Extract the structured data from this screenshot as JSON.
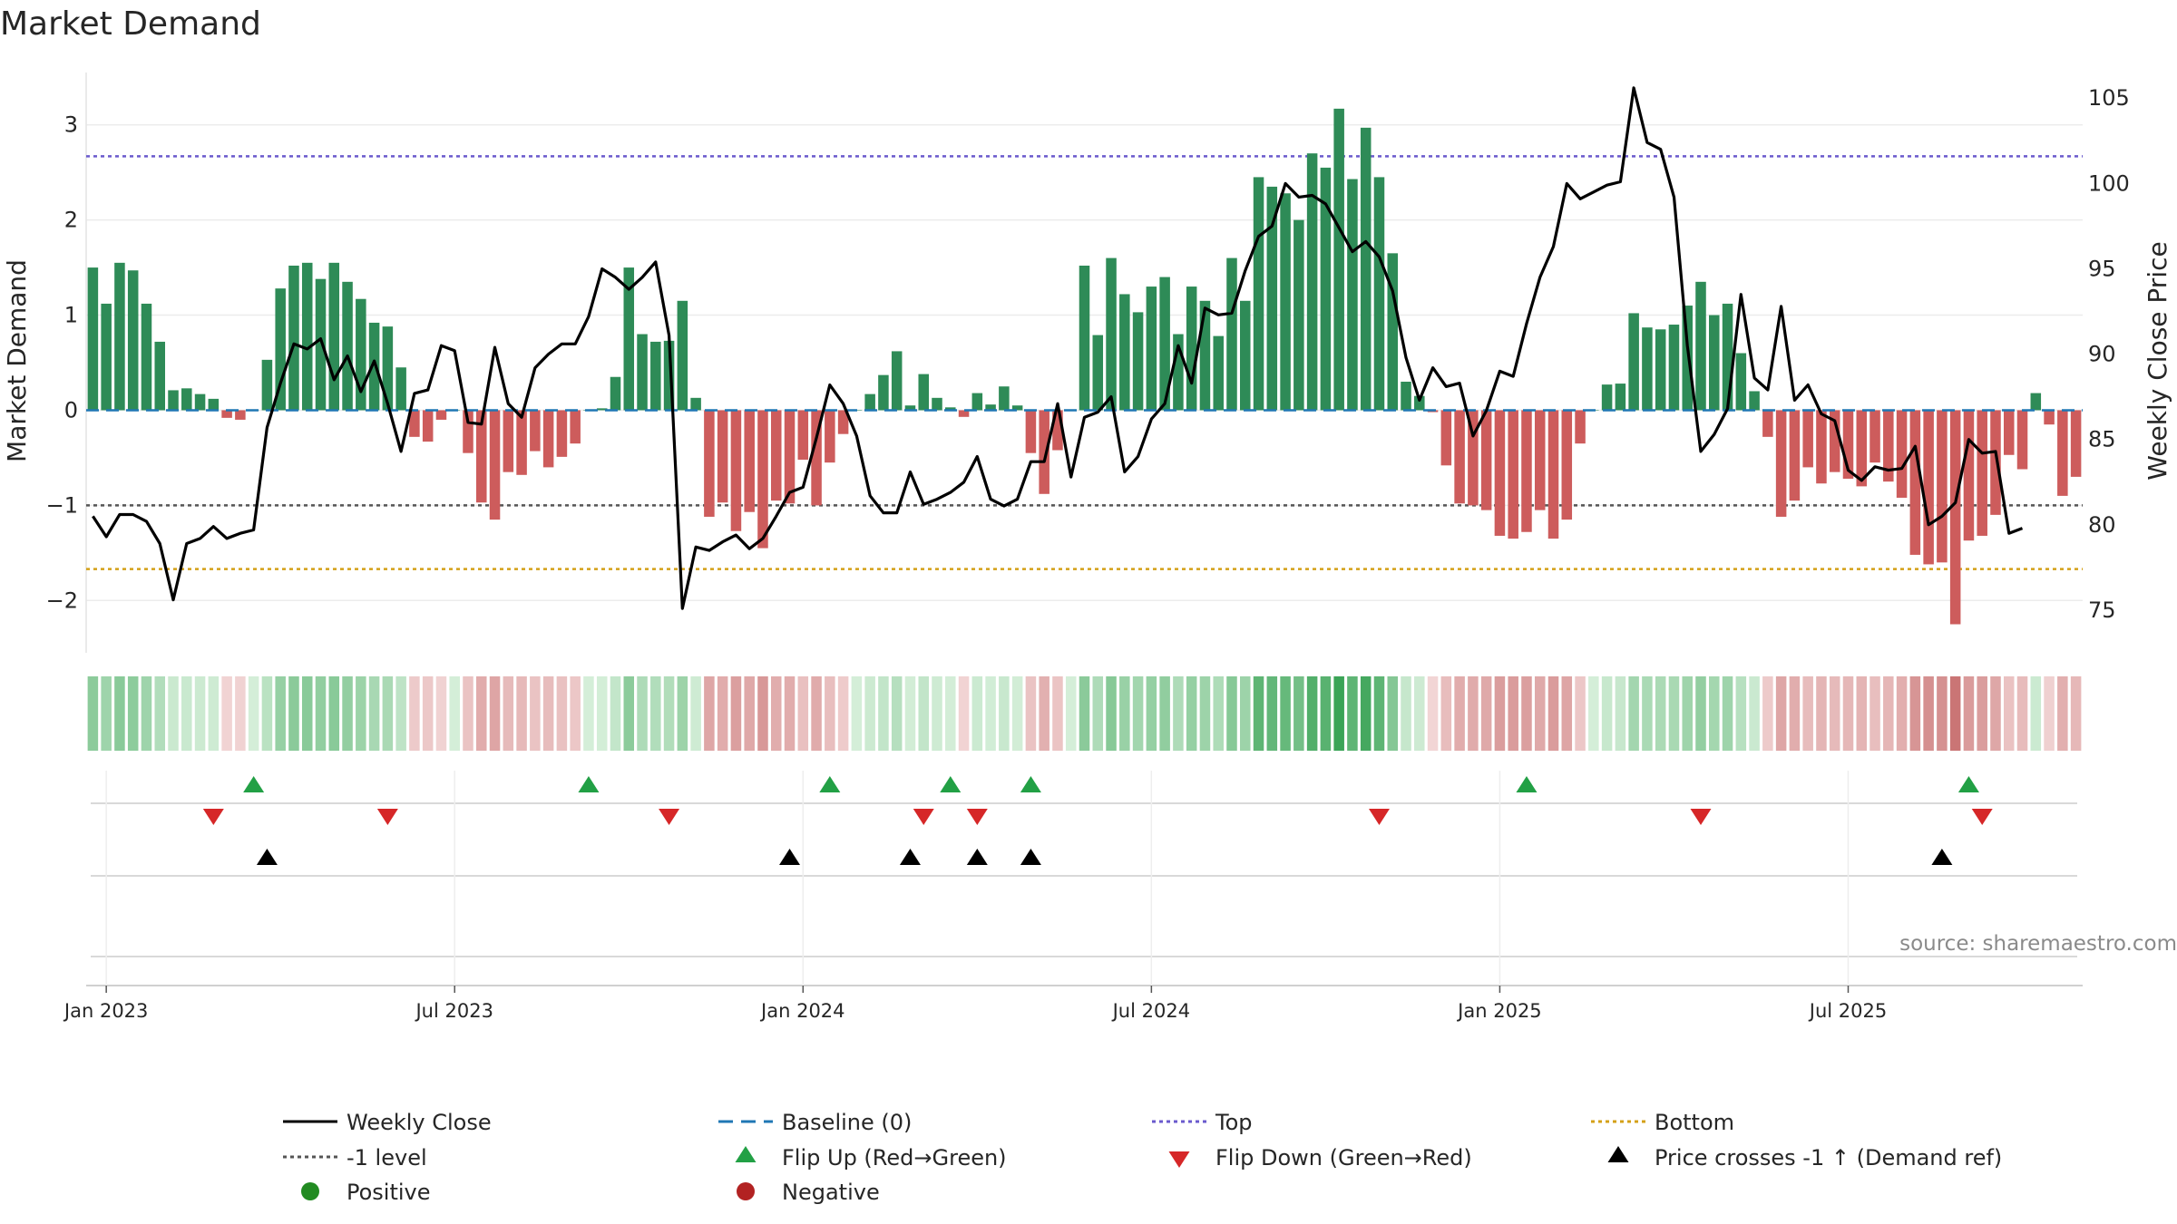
{
  "chart_data": {
    "type": "bar",
    "title": "Market Demand",
    "ylabel_left": "Market Demand",
    "ylabel_right": "Weekly Close Price",
    "xlabel": "",
    "ylim_left": [
      -2.55,
      3.55
    ],
    "ylim_right": [
      72.5,
      106.5
    ],
    "yticks_left": [
      3,
      2,
      1,
      0,
      -1,
      -2
    ],
    "yticks_left_labels": [
      "3",
      "2",
      "1",
      "0",
      "−1",
      "−2"
    ],
    "yticks_right": [
      105,
      100,
      95,
      90,
      85,
      80,
      75
    ],
    "x_ticks": [
      {
        "label": "Jan 2023",
        "week": 1
      },
      {
        "label": "Jul 2023",
        "week": 27
      },
      {
        "label": "Jan 2024",
        "week": 53
      },
      {
        "label": "Jul 2024",
        "week": 79
      },
      {
        "label": "Jan 2025",
        "week": 105
      },
      {
        "label": "Jul 2025",
        "week": 131
      }
    ],
    "top_level": 2.67,
    "bottom_level": -1.67,
    "minus_one_level": -1,
    "baseline": 0,
    "colors": {
      "positive": "#2e8b57",
      "negative": "#cd5c5c",
      "close": "#000000",
      "top": "#6a5acd",
      "bottom": "#d4a017",
      "minus_one": "#555555",
      "baseline": "#1f77b4",
      "flip_up": "#22a045",
      "flip_down": "#d62728",
      "cross": "#000000"
    },
    "series": [
      {
        "name": "Market Demand",
        "values": [
          1.5,
          1.12,
          1.55,
          1.47,
          1.12,
          0.72,
          0.21,
          0.23,
          0.17,
          0.12,
          -0.08,
          -0.1,
          0,
          0.53,
          1.28,
          1.52,
          1.55,
          1.38,
          1.55,
          1.35,
          1.17,
          0.92,
          0.88,
          0.45,
          -0.28,
          -0.33,
          -0.1,
          0,
          -0.45,
          -0.97,
          -1.15,
          -0.65,
          -0.68,
          -0.43,
          -0.6,
          -0.49,
          -0.35,
          0,
          0.02,
          0.35,
          1.5,
          0.8,
          0.72,
          0.73,
          1.15,
          0.13,
          -1.12,
          -0.97,
          -1.27,
          -1.07,
          -1.45,
          -0.95,
          -0.98,
          -0.52,
          -1,
          -0.55,
          -0.25,
          0,
          0.17,
          0.37,
          0.62,
          0.05,
          0.38,
          0.13,
          0.03,
          -0.07,
          0.18,
          0.06,
          0.25,
          0.05,
          -0.45,
          -0.88,
          -0.42,
          0,
          1.52,
          0.79,
          1.6,
          1.22,
          1.03,
          1.3,
          1.4,
          0.8,
          1.3,
          1.15,
          0.78,
          1.6,
          1.15,
          2.45,
          2.35,
          2.28,
          2.0,
          2.7,
          2.55,
          3.17,
          2.43,
          2.97,
          2.45,
          1.65,
          0.3,
          0.15,
          -0.02,
          -0.58,
          -0.98,
          -1.0,
          -1.05,
          -1.32,
          -1.35,
          -1.28,
          -1.05,
          -1.35,
          -1.15,
          -0.35,
          0,
          0.27,
          0.28,
          1.02,
          0.87,
          0.85,
          0.9,
          1.1,
          1.35,
          1.0,
          1.12,
          0.6,
          0.2,
          -0.28,
          -1.12,
          -0.95,
          -0.6,
          -0.77,
          -0.65,
          -0.72,
          -0.8,
          -0.55,
          -0.75,
          -0.92,
          -1.52,
          -1.62,
          -1.6,
          -2.25,
          -1.37,
          -1.32,
          -1.1,
          -0.47,
          -0.62,
          0.18,
          -0.15,
          -0.9,
          -0.7
        ]
      },
      {
        "name": "Weekly Close",
        "values": [
          80.5,
          79.3,
          80.6,
          80.6,
          80.2,
          78.9,
          75.6,
          78.9,
          79.2,
          79.9,
          79.2,
          79.5,
          79.7,
          85.7,
          88.3,
          90.6,
          90.3,
          90.9,
          88.5,
          89.9,
          87.8,
          89.6,
          87.1,
          84.3,
          87.7,
          87.9,
          90.5,
          90.2,
          86.0,
          85.9,
          90.4,
          87.1,
          86.3,
          89.2,
          90.0,
          90.6,
          90.6,
          92.2,
          95.0,
          94.5,
          93.8,
          94.5,
          95.4,
          91.1,
          75.1,
          78.7,
          78.5,
          79.0,
          79.4,
          78.6,
          79.2,
          80.5,
          81.9,
          82.2,
          85.1,
          88.2,
          87.1,
          85.2,
          81.7,
          80.7,
          80.7,
          83.1,
          81.2,
          81.5,
          81.9,
          82.5,
          84.0,
          81.5,
          81.1,
          81.5,
          83.7,
          83.7,
          87.1,
          82.8,
          86.3,
          86.6,
          87.5,
          83.1,
          84.0,
          86.2,
          87.1,
          90.5,
          88.3,
          92.7,
          92.3,
          92.4,
          94.9,
          96.9,
          97.5,
          100.0,
          99.2,
          99.3,
          98.8,
          97.4,
          96.0,
          96.6,
          95.7,
          93.7,
          89.8,
          87.3,
          89.2,
          88.1,
          88.3,
          85.2,
          86.7,
          89.0,
          88.7,
          91.8,
          94.5,
          96.3,
          100.0,
          99.1,
          99.5,
          99.9,
          100.1,
          105.6,
          102.4,
          102.0,
          99.2,
          90.5,
          84.3,
          85.3,
          86.8,
          93.5,
          88.6,
          87.9,
          92.8,
          87.3,
          88.2,
          86.5,
          86.1,
          83.2,
          82.6,
          83.4,
          83.2,
          83.3,
          84.6,
          80.0,
          80.5,
          81.3,
          85.0,
          84.2,
          84.3,
          79.5,
          79.8
        ]
      }
    ],
    "heat_strip_label": "Market Demand heat strip",
    "flip_up_weeks": [
      12,
      37,
      55,
      64,
      70,
      107,
      140
    ],
    "flip_down_weeks": [
      9,
      22,
      43,
      62,
      66,
      96,
      120,
      141
    ],
    "price_cross_weeks": [
      13,
      52,
      61,
      66,
      70,
      138
    ],
    "source": "source: sharemaestro.com"
  },
  "legend": [
    {
      "label": "Weekly Close",
      "kind": "line-solid",
      "color": "#000000"
    },
    {
      "label": "Baseline (0)",
      "kind": "line-dashed",
      "color": "#1f77b4"
    },
    {
      "label": "Top",
      "kind": "line-dotted",
      "color": "#6a5acd"
    },
    {
      "label": "Bottom",
      "kind": "line-dotted",
      "color": "#d4a017"
    },
    {
      "label": "-1 level",
      "kind": "line-dotted",
      "color": "#555555"
    },
    {
      "label": "Flip Up (Red→Green)",
      "kind": "tri-up",
      "color": "#22a045"
    },
    {
      "label": "Flip Down (Green→Red)",
      "kind": "tri-down",
      "color": "#d62728"
    },
    {
      "label": "Price crosses -1 ↑ (Demand ref)",
      "kind": "tri-up",
      "color": "#000000"
    },
    {
      "label": "Positive",
      "kind": "dot",
      "color": "#228b22"
    },
    {
      "label": "Negative",
      "kind": "dot",
      "color": "#b22222"
    }
  ]
}
